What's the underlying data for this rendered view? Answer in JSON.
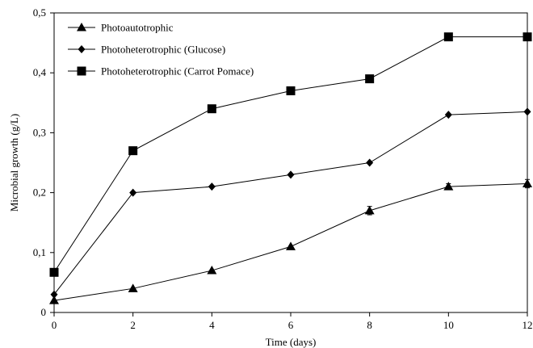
{
  "chart_data": {
    "type": "line",
    "title": "",
    "xlabel": "Time (days)",
    "ylabel": "Microbial growth (g/L)",
    "x": [
      0,
      2,
      4,
      6,
      8,
      10,
      12
    ],
    "xticks": [
      "0",
      "2",
      "4",
      "6",
      "8",
      "10",
      "12"
    ],
    "yticks": [
      "0",
      "0,1",
      "0,2",
      "0,3",
      "0,4",
      "0,5"
    ],
    "xlim": [
      0,
      12
    ],
    "ylim": [
      0,
      0.5
    ],
    "grid": false,
    "legend_position": "top-left",
    "series": [
      {
        "name": "Photoautotrophic",
        "marker": "triangle",
        "color": "#000000",
        "values": [
          0.02,
          0.04,
          0.07,
          0.11,
          0.17,
          0.21,
          0.215
        ],
        "errors": [
          0,
          0,
          0,
          0,
          0.007,
          0.005,
          0.007
        ]
      },
      {
        "name": "Photoheterotrophic (Glucose)",
        "marker": "diamond",
        "color": "#000000",
        "values": [
          0.03,
          0.2,
          0.21,
          0.23,
          0.25,
          0.33,
          0.335
        ],
        "errors": [
          0,
          0,
          0,
          0,
          0,
          0,
          0
        ]
      },
      {
        "name": "Photoheterotrophic (Carrot Pomace)",
        "marker": "square",
        "color": "#000000",
        "values": [
          0.067,
          0.27,
          0.34,
          0.37,
          0.39,
          0.46,
          0.46
        ],
        "errors": [
          0,
          0,
          0,
          0,
          0.006,
          0,
          0
        ]
      }
    ]
  }
}
